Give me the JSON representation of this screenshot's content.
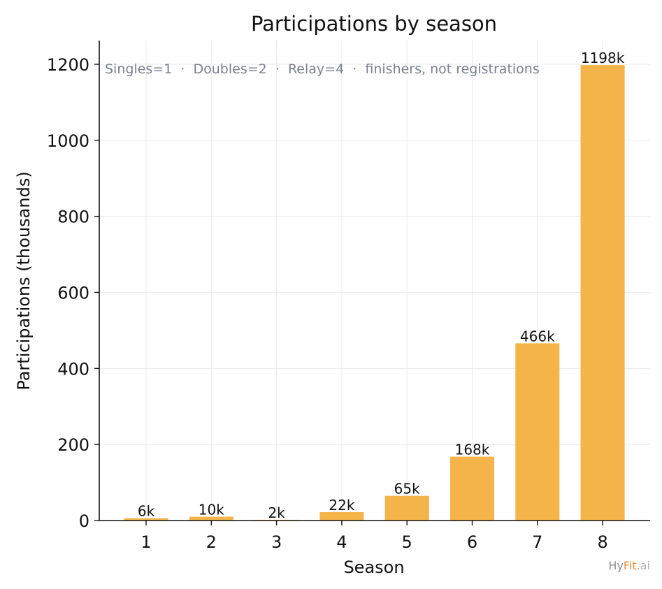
{
  "chart_data": {
    "type": "bar",
    "title": "Participations by season",
    "xlabel": "Season",
    "ylabel": "Participations (thousands)",
    "categories": [
      "1",
      "2",
      "3",
      "4",
      "5",
      "6",
      "7",
      "8"
    ],
    "values": [
      6,
      10,
      2,
      22,
      65,
      168,
      466,
      1198
    ],
    "value_labels": [
      "6k",
      "10k",
      "2k",
      "22k",
      "65k",
      "168k",
      "466k",
      "1198k"
    ],
    "ylim": [
      0,
      1260
    ],
    "yticks": [
      0,
      200,
      400,
      600,
      800,
      1000,
      1200
    ],
    "grid": true,
    "bar_color": "#f4b44a",
    "annotation": "Singles=1  ·  Doubles=2  ·  Relay=4  ·  finishers, not registrations"
  },
  "watermark": {
    "part1": "Hy",
    "part2": "Fit",
    "part3": ".ai",
    "color1": "#8c8c8c",
    "color2": "#f08a3c",
    "color3": "#b4b4b4"
  }
}
